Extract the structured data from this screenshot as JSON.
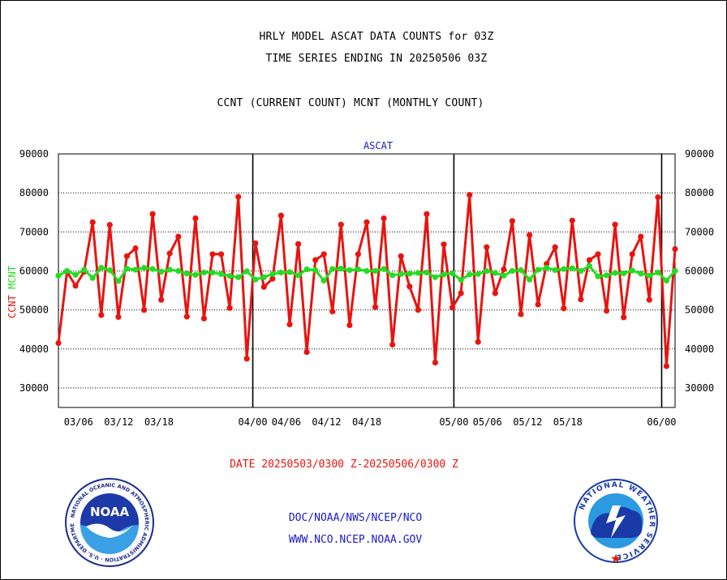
{
  "titles": {
    "line1": "HRLY MODEL ASCAT DATA COUNTS for 03Z",
    "line2": "TIME SERIES ENDING IN 20250506 03Z",
    "line3": "CCNT (CURRENT COUNT) MCNT (MONTHLY COUNT)"
  },
  "footer": {
    "date_range": "DATE 20250503/0300 Z-20250506/0300 Z",
    "link1": "DOC/NOAA/NWS/NCEP/NCO",
    "link2": "WWW.NCO.NCEP.NOAA.GOV"
  },
  "logos": {
    "noaa": {
      "center_text": "NOAA",
      "ring_text": "NATIONAL OCEANIC AND ATMOSPHERIC ADMINISTRATION · U.S. DEPARTMENT OF COMMERCE"
    },
    "nws": {
      "ring_text": "NATIONAL WEATHER SERVICE"
    }
  },
  "colors": {
    "ccnt": "#e8140f",
    "mcnt": "#22dd22",
    "panel_label": "#1a1ac8",
    "axis": "#000000"
  },
  "chart_data": {
    "type": "line",
    "panel_label": "ASCAT",
    "ylabel_left": [
      {
        "text": "CCNT",
        "color": "#e8140f"
      },
      {
        "text": "MCNT",
        "color": "#22dd22"
      }
    ],
    "ylim": [
      25000,
      90000
    ],
    "yticks": [
      30000,
      40000,
      50000,
      60000,
      70000,
      80000,
      90000
    ],
    "ytick_labels": [
      "30000",
      "40000",
      "50000",
      "60000",
      "70000",
      "80000",
      "90000"
    ],
    "xlim": [
      "2025-03-03",
      "2025-06-03"
    ],
    "xticks": [
      "03/06",
      "03/12",
      "03/18",
      "04/00",
      "04/06",
      "04/12",
      "04/18",
      "05/00",
      "05/06",
      "05/12",
      "05/18",
      "06/00"
    ],
    "month_dividers": [
      "04/00",
      "05/00",
      "06/00"
    ],
    "grid": "horizontal dotted",
    "series": [
      {
        "name": "CCNT",
        "color": "#e8140f",
        "values": [
          41500,
          59800,
          56200,
          59800,
          72500,
          48700,
          71800,
          48200,
          63800,
          65800,
          50000,
          74600,
          52600,
          64500,
          68800,
          48300,
          73500,
          47800,
          64300,
          64300,
          50500,
          79000,
          37500,
          67100,
          55900,
          58000,
          74200,
          46300,
          66900,
          39200,
          62800,
          64300,
          49600,
          71900,
          46100,
          64300,
          72500,
          50700,
          73500,
          41100,
          63800,
          56000,
          50000,
          74600,
          36500,
          66800,
          50600,
          54300,
          79500,
          41800,
          66100,
          54300,
          60400,
          72800,
          48900,
          69200,
          51400,
          61800,
          66100,
          50400,
          72900,
          52700,
          62800,
          64300,
          49800,
          71900,
          48100,
          64300,
          68800,
          52600,
          78900,
          35600,
          65600
        ]
      },
      {
        "name": "MCNT",
        "color": "#22dd22",
        "values": [
          58800,
          60000,
          59000,
          60300,
          58200,
          60800,
          60200,
          57400,
          60600,
          60300,
          60800,
          60500,
          59800,
          60300,
          60000,
          59300,
          59000,
          59600,
          59600,
          59200,
          58700,
          58400,
          59900,
          57800,
          58400,
          59200,
          59600,
          59700,
          58900,
          60400,
          60200,
          57500,
          60500,
          60600,
          60200,
          60400,
          60000,
          60000,
          60500,
          58900,
          59200,
          59300,
          59500,
          59600,
          58400,
          59100,
          59400,
          57700,
          59100,
          59200,
          60000,
          59500,
          58800,
          60000,
          60200,
          57800,
          60300,
          60800,
          60200,
          60500,
          60700,
          60000,
          61300,
          58600,
          58900,
          59500,
          59400,
          60100,
          59300,
          58800,
          59600,
          57500,
          60000
        ]
      }
    ]
  }
}
